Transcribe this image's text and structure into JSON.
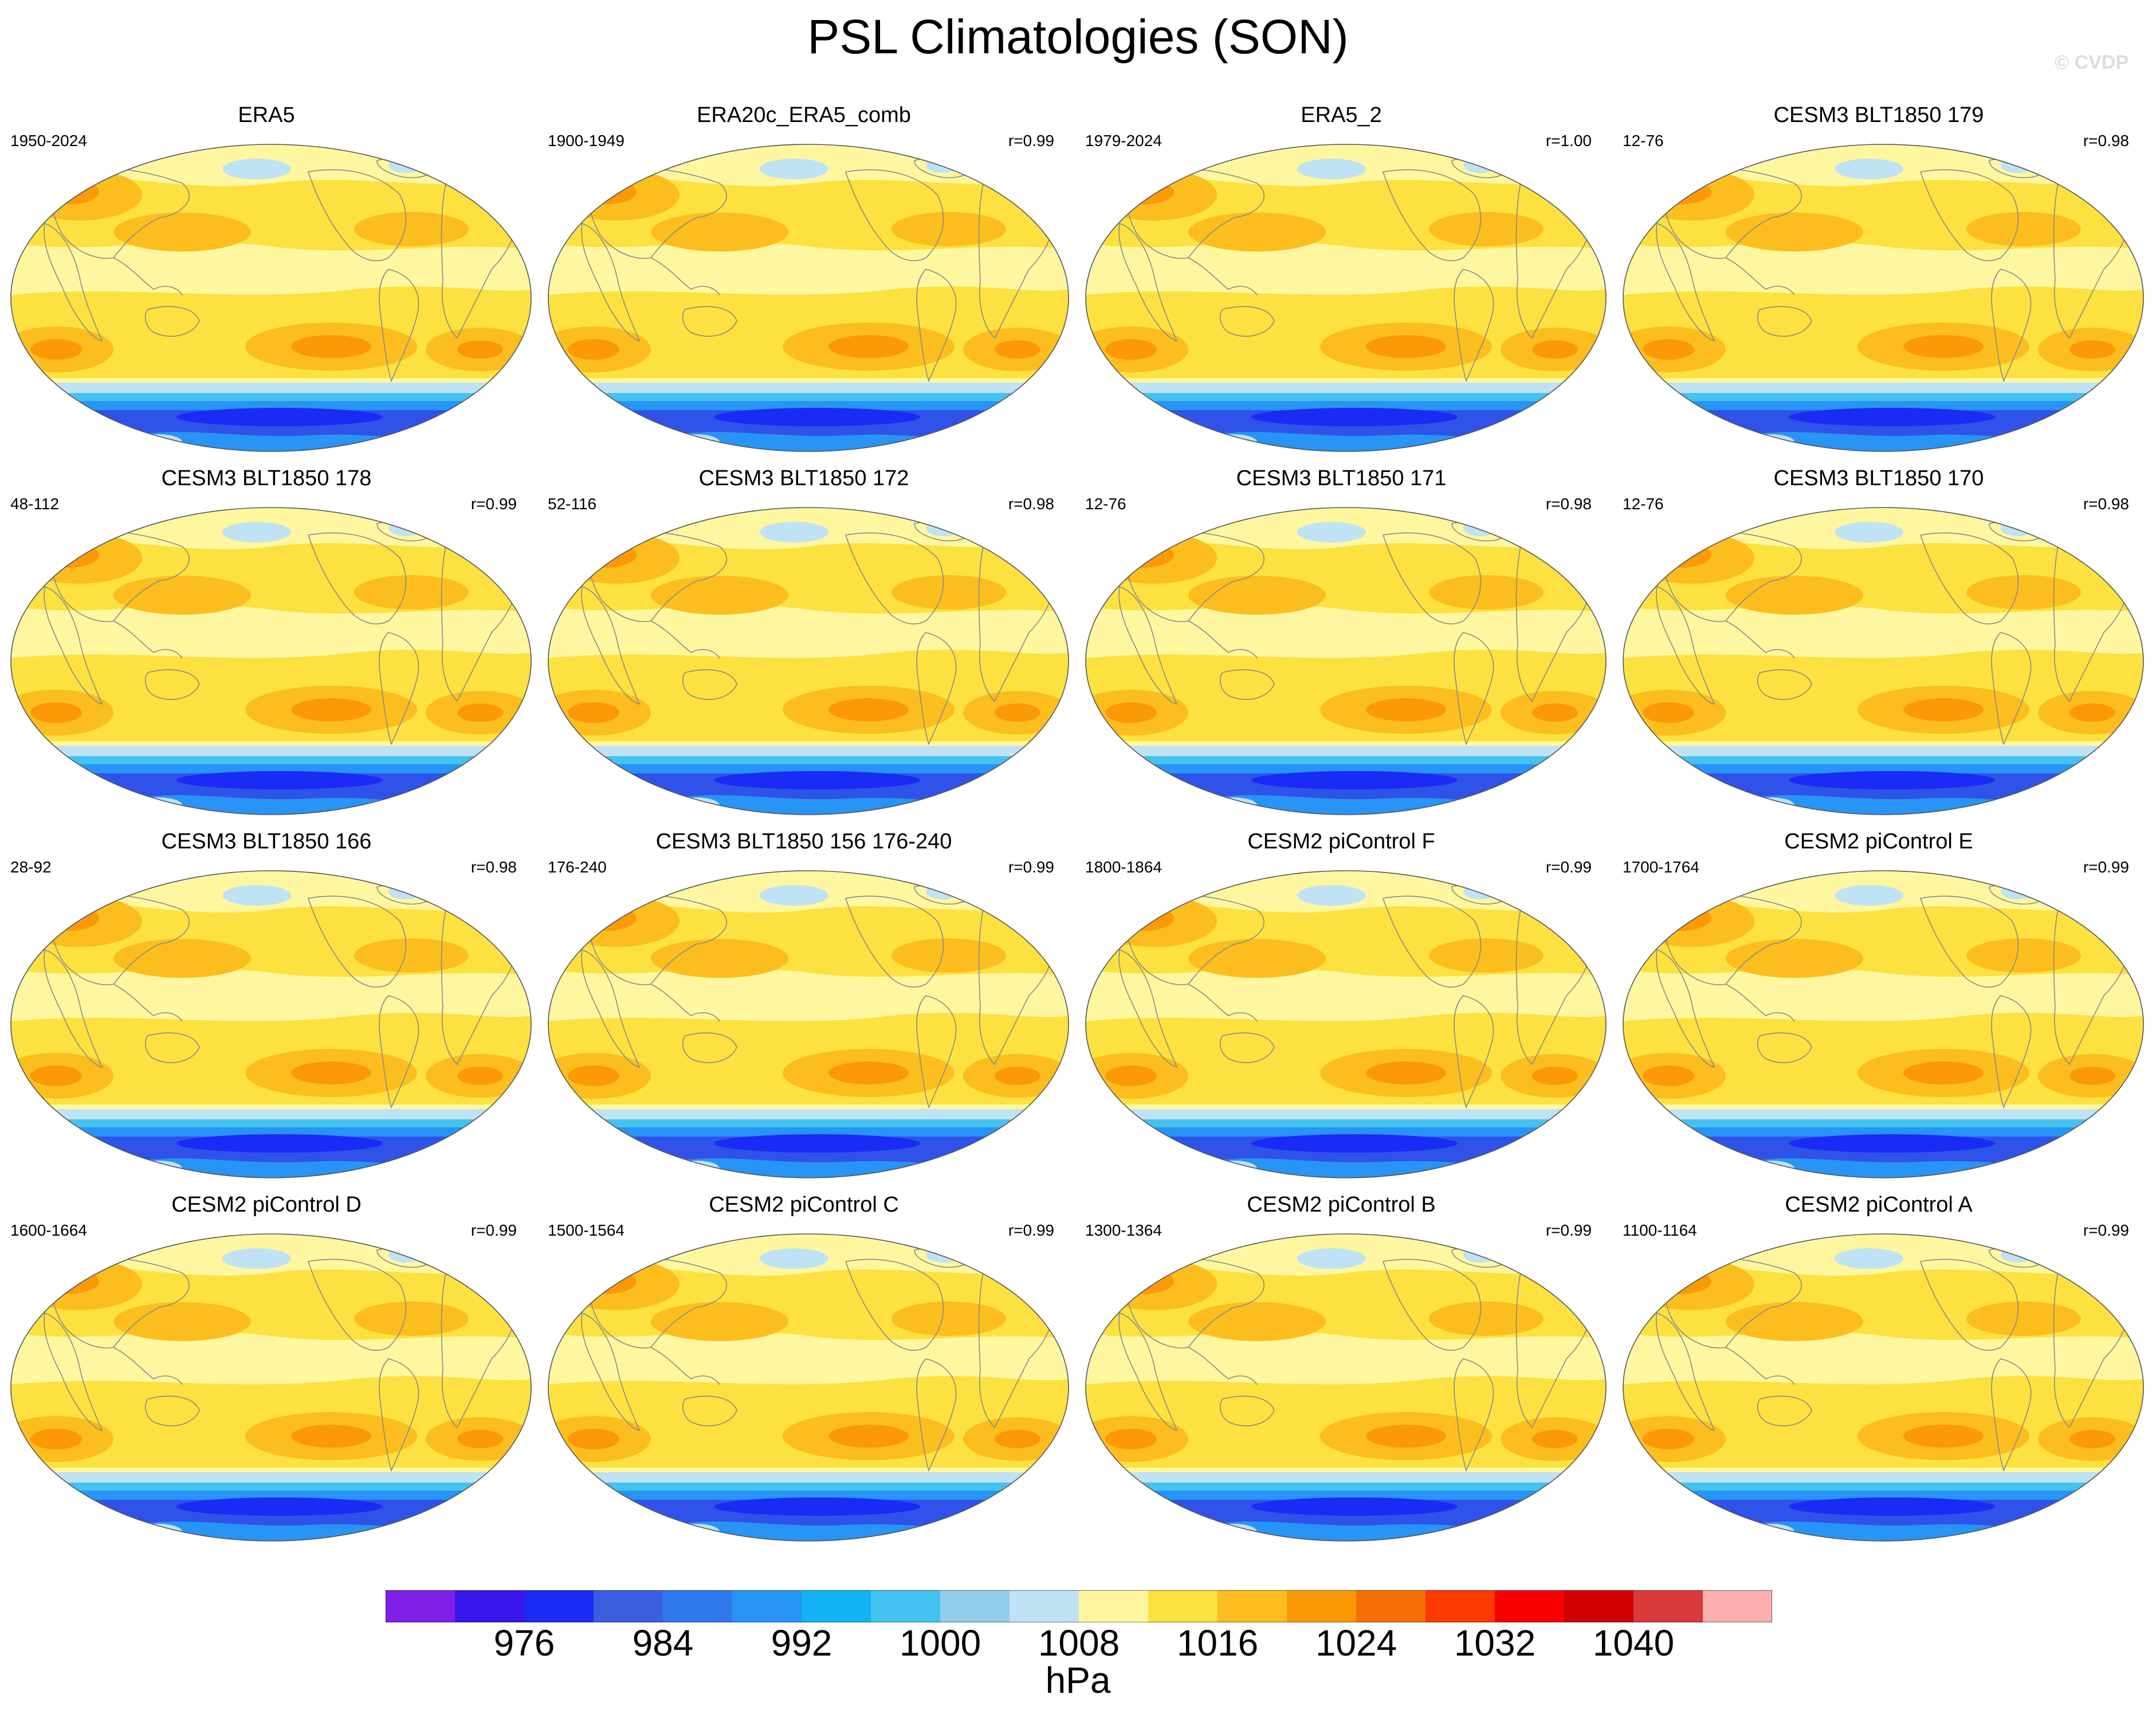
{
  "figure": {
    "title": "PSL Climatologies (SON)",
    "watermark": "© CVDP",
    "units": "hPa"
  },
  "panels": [
    {
      "title": "ERA5",
      "years": "1950-2024",
      "corr": ""
    },
    {
      "title": "ERA20c_ERA5_comb",
      "years": "1900-1949",
      "corr": "r=0.99"
    },
    {
      "title": "ERA5_2",
      "years": "1979-2024",
      "corr": "r=1.00"
    },
    {
      "title": "CESM3 BLT1850 179",
      "years": "12-76",
      "corr": "r=0.98"
    },
    {
      "title": "CESM3 BLT1850 178",
      "years": "48-112",
      "corr": "r=0.99"
    },
    {
      "title": "CESM3 BLT1850 172",
      "years": "52-116",
      "corr": "r=0.98"
    },
    {
      "title": "CESM3 BLT1850 171",
      "years": "12-76",
      "corr": "r=0.98"
    },
    {
      "title": "CESM3 BLT1850 170",
      "years": "12-76",
      "corr": "r=0.98"
    },
    {
      "title": "CESM3 BLT1850 166",
      "years": "28-92",
      "corr": "r=0.98"
    },
    {
      "title": "CESM3 BLT1850 156 176-240",
      "years": "176-240",
      "corr": "r=0.99"
    },
    {
      "title": "CESM2 piControl F",
      "years": "1800-1864",
      "corr": "r=0.99"
    },
    {
      "title": "CESM2 piControl E",
      "years": "1700-1764",
      "corr": "r=0.99"
    },
    {
      "title": "CESM2 piControl D",
      "years": "1600-1664",
      "corr": "r=0.99"
    },
    {
      "title": "CESM2 piControl C",
      "years": "1500-1564",
      "corr": "r=0.99"
    },
    {
      "title": "CESM2 piControl B",
      "years": "1300-1364",
      "corr": "r=0.99"
    },
    {
      "title": "CESM2 piControl A",
      "years": "1100-1164",
      "corr": "r=0.99"
    }
  ],
  "colorbar": {
    "colors": [
      "#7f1fe8",
      "#3a16ee",
      "#1a2bf5",
      "#3b5ee0",
      "#2f7aee",
      "#2894f5",
      "#11b3f5",
      "#45c3f0",
      "#93cdec",
      "#bfe2f5",
      "#fff7a0",
      "#fde140",
      "#fbbe1e",
      "#fb9a06",
      "#f87004",
      "#fb3a00",
      "#f80000",
      "#d00000",
      "#d93a3a",
      "#faaeae"
    ],
    "tick_labels": [
      "976",
      "984",
      "992",
      "1000",
      "1008",
      "1016",
      "1024",
      "1032",
      "1040"
    ]
  },
  "map_palette": {
    "ocean_light": "#fff7a0",
    "mid": "#fde140",
    "high": "#fbbe1e",
    "highest": "#fb9a06",
    "low_light": "#bfe2f5",
    "low": "#45c3f0",
    "lower": "#2894f5",
    "lowest": "#2f52e8",
    "deepest": "#1a2bf5",
    "coast": "#8a8a8a"
  }
}
